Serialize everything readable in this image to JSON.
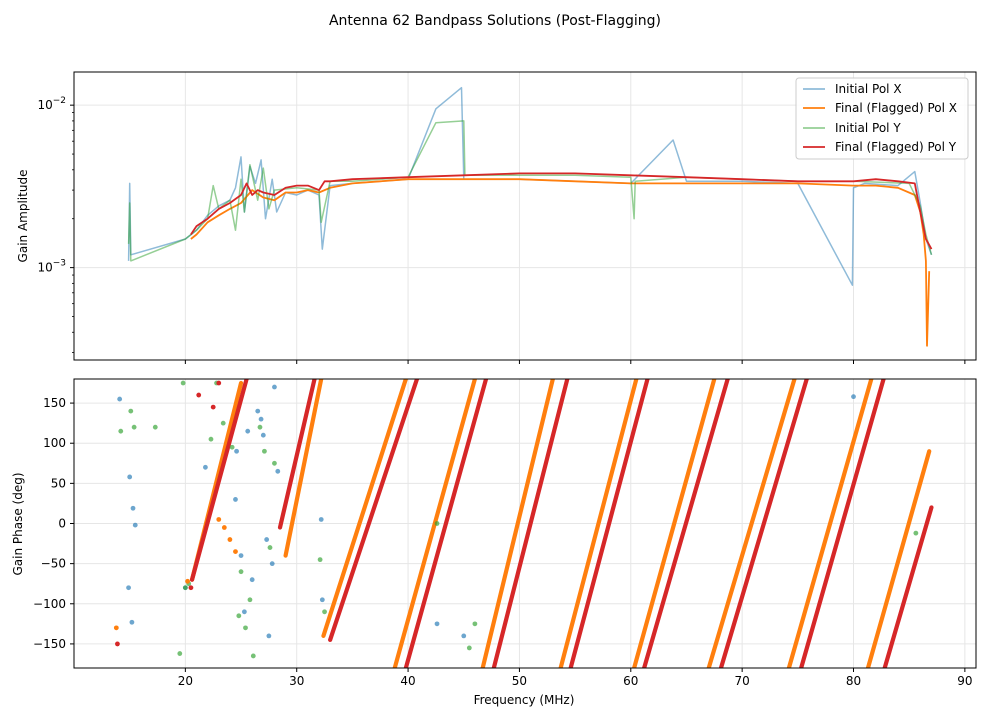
{
  "figure": {
    "title": "Antenna 62 Bandpass Solutions (Post-Flagging)"
  },
  "chart_data": [
    {
      "type": "line",
      "name": "amplitude",
      "yscale": "log",
      "xlim": [
        10,
        91
      ],
      "ylim": [
        0.00027,
        0.016
      ],
      "ylabel": "Gain Amplitude",
      "xlabel": "",
      "grid": true,
      "yticks": [
        {
          "value": 0.001,
          "label_base": "10",
          "label_exp": "−3"
        },
        {
          "value": 0.01,
          "label_base": "10",
          "label_exp": "−2"
        }
      ],
      "xticks": [
        20,
        30,
        40,
        50,
        60,
        70,
        80,
        90
      ],
      "legend": {
        "position": "top-right",
        "entries": [
          "Initial Pol X",
          "Final (Flagged) Pol X",
          "Initial Pol Y",
          "Final (Flagged) Pol Y"
        ]
      },
      "series": [
        {
          "name": "Initial Pol X",
          "color": "#1f77b4",
          "x": [
            14.9,
            15.0,
            15.1,
            20.0,
            21.0,
            22.0,
            23.0,
            24.0,
            24.5,
            25.0,
            25.3,
            25.8,
            26.3,
            26.8,
            27.2,
            27.8,
            28.2,
            29.0,
            30.0,
            31.0,
            32.0,
            32.3,
            33.0,
            35.0,
            40.0,
            42.5,
            44.8,
            45.0,
            50.0,
            55.0,
            60.0,
            63.8,
            65.0,
            70.0,
            75.0,
            79.9,
            80.0,
            81.0,
            84.0,
            85.5,
            86.0,
            86.5,
            87.0
          ],
          "y": [
            0.0011,
            0.0033,
            0.0012,
            0.0015,
            0.0017,
            0.0021,
            0.0024,
            0.0026,
            0.0031,
            0.0048,
            0.0022,
            0.0042,
            0.0033,
            0.0046,
            0.002,
            0.0035,
            0.0022,
            0.0029,
            0.0028,
            0.003,
            0.0028,
            0.0013,
            0.0032,
            0.0033,
            0.0035,
            0.0095,
            0.0128,
            0.0035,
            0.0035,
            0.0034,
            0.0033,
            0.0061,
            0.0034,
            0.0034,
            0.0033,
            0.00078,
            0.0031,
            0.0033,
            0.0032,
            0.0039,
            0.0025,
            0.0015,
            0.0012
          ]
        },
        {
          "name": "Final (Flagged) Pol X",
          "color": "#ff7f0e",
          "x": [
            20.5,
            21.0,
            22.0,
            23.0,
            24.0,
            25.0,
            26.0,
            27.0,
            28.0,
            29.0,
            30.0,
            31.0,
            32.0,
            33.0,
            35.0,
            40.0,
            45.0,
            50.0,
            55.0,
            60.0,
            65.0,
            70.0,
            75.0,
            80.0,
            82.0,
            84.0,
            85.5,
            86.0,
            86.3,
            86.5,
            86.6,
            86.8
          ],
          "y": [
            0.0015,
            0.0016,
            0.0019,
            0.0021,
            0.0023,
            0.0025,
            0.003,
            0.0027,
            0.0026,
            0.0029,
            0.0029,
            0.003,
            0.0029,
            0.0031,
            0.0033,
            0.0035,
            0.0035,
            0.0035,
            0.0034,
            0.0033,
            0.0033,
            0.0033,
            0.0033,
            0.0032,
            0.0032,
            0.0031,
            0.0028,
            0.0022,
            0.0016,
            0.0011,
            0.00033,
            0.00095
          ]
        },
        {
          "name": "Initial Pol Y",
          "color": "#2ca02c",
          "x": [
            14.9,
            15.0,
            15.1,
            20.0,
            21.0,
            22.0,
            22.5,
            23.0,
            24.0,
            24.5,
            25.0,
            25.3,
            25.8,
            26.5,
            27.0,
            27.5,
            28.0,
            30.0,
            32.0,
            32.2,
            33.0,
            35.0,
            40.0,
            42.5,
            45.0,
            45.1,
            50.0,
            55.0,
            60.0,
            60.3,
            60.4,
            65.0,
            70.0,
            75.0,
            80.0,
            85.0,
            86.0,
            86.5,
            87.0
          ],
          "y": [
            0.0014,
            0.0025,
            0.0011,
            0.0015,
            0.0017,
            0.002,
            0.0032,
            0.0023,
            0.0026,
            0.0017,
            0.0035,
            0.0022,
            0.0043,
            0.0026,
            0.0041,
            0.0023,
            0.003,
            0.0031,
            0.003,
            0.0019,
            0.0034,
            0.0034,
            0.0036,
            0.0078,
            0.008,
            0.0037,
            0.0037,
            0.0037,
            0.0036,
            0.002,
            0.0034,
            0.0036,
            0.0035,
            0.0034,
            0.0034,
            0.0033,
            0.0024,
            0.0016,
            0.0012
          ]
        },
        {
          "name": "Final (Flagged) Pol Y",
          "color": "#d62728",
          "x": [
            20.5,
            21.0,
            22.0,
            23.0,
            24.0,
            25.0,
            25.5,
            26.0,
            26.5,
            27.0,
            28.0,
            29.0,
            30.0,
            31.0,
            32.0,
            32.5,
            33.0,
            35.0,
            40.0,
            45.0,
            50.0,
            55.0,
            60.0,
            65.0,
            70.0,
            75.0,
            80.0,
            82.0,
            84.0,
            85.5,
            86.0,
            86.5,
            87.0
          ],
          "y": [
            0.0016,
            0.0018,
            0.002,
            0.0023,
            0.0025,
            0.0028,
            0.0033,
            0.0028,
            0.003,
            0.0029,
            0.0028,
            0.0031,
            0.0032,
            0.0032,
            0.003,
            0.0034,
            0.0034,
            0.0035,
            0.0036,
            0.0037,
            0.0038,
            0.0038,
            0.0037,
            0.0036,
            0.0035,
            0.0034,
            0.0034,
            0.0035,
            0.0034,
            0.0033,
            0.0022,
            0.0015,
            0.0013
          ]
        }
      ]
    },
    {
      "type": "scatter",
      "name": "phase",
      "xlim": [
        10,
        91
      ],
      "ylim": [
        -180,
        180
      ],
      "xlabel": "Frequency (MHz)",
      "ylabel": "Gain Phase (deg)",
      "grid": true,
      "xticks": [
        20,
        30,
        40,
        50,
        60,
        70,
        80,
        90
      ],
      "yticks": [
        -150,
        -100,
        -50,
        0,
        50,
        100,
        150
      ],
      "wrap_lines": [
        {
          "series": "Final (Flagged) Pol X",
          "color": "#ff7f0e",
          "segments": [
            [
              20.6,
              -70,
              25.0,
              175
            ],
            [
              29.0,
              -40,
              32.2,
              180
            ],
            [
              32.4,
              -140,
              39.8,
              180
            ],
            [
              38.8,
              -180,
              46.0,
              180
            ],
            [
              46.7,
              -180,
              53.0,
              180
            ],
            [
              53.7,
              -180,
              60.5,
              180
            ],
            [
              60.3,
              -180,
              67.5,
              180
            ],
            [
              67.0,
              -180,
              74.7,
              180
            ],
            [
              74.2,
              -180,
              81.6,
              180
            ],
            [
              81.3,
              -180,
              86.8,
              90
            ]
          ]
        },
        {
          "series": "Final (Flagged) Pol Y",
          "color": "#d62728",
          "segments": [
            [
              20.6,
              -70,
              25.5,
              180
            ],
            [
              28.5,
              -5,
              31.6,
              180
            ],
            [
              33.0,
              -145,
              40.8,
              180
            ],
            [
              39.8,
              -180,
              47.0,
              180
            ],
            [
              47.7,
              -180,
              54.3,
              180
            ],
            [
              54.6,
              -180,
              61.5,
              180
            ],
            [
              61.2,
              -180,
              68.7,
              180
            ],
            [
              68.1,
              -180,
              75.8,
              180
            ],
            [
              75.3,
              -180,
              82.7,
              180
            ],
            [
              82.8,
              -180,
              87.0,
              20
            ]
          ]
        }
      ],
      "scatter_points": [
        {
          "series": "Initial Pol X",
          "color": "#1f77b4",
          "x": [
            14.1,
            15.0,
            15.3,
            15.5,
            14.9,
            15.2,
            20.0,
            21.8,
            24.5,
            24.6,
            25.0,
            25.3,
            26.5,
            26.8,
            27.0,
            27.5,
            27.8,
            28.0,
            28.3,
            32.2,
            32.3,
            42.6,
            45.0,
            80.0,
            25.6,
            26.0,
            27.3
          ],
          "y": [
            155,
            58,
            19,
            -2,
            -80,
            -123,
            -80,
            70,
            30,
            90,
            -40,
            -110,
            140,
            130,
            110,
            -140,
            -50,
            170,
            65,
            5,
            -95,
            -125,
            -140,
            158,
            115,
            -70,
            -20
          ]
        },
        {
          "series": "Initial Pol Y",
          "color": "#2ca02c",
          "x": [
            14.2,
            15.1,
            15.4,
            17.3,
            19.8,
            20.0,
            20.3,
            22.3,
            22.8,
            23.4,
            24.2,
            24.8,
            25.0,
            25.4,
            25.8,
            26.1,
            26.7,
            27.1,
            27.6,
            28.0,
            32.1,
            32.5,
            42.6,
            46.0,
            45.5,
            85.6,
            19.5
          ],
          "y": [
            115,
            140,
            120,
            120,
            175,
            -80,
            -75,
            105,
            175,
            125,
            95,
            -115,
            -60,
            -130,
            -95,
            -165,
            120,
            90,
            -30,
            75,
            -45,
            -110,
            0,
            -125,
            -155,
            -12,
            -162
          ]
        },
        {
          "series": "Final (Flagged) Pol X",
          "color": "#ff7f0e",
          "x": [
            13.8,
            20.2,
            23.0,
            23.5,
            24.0,
            24.5
          ],
          "y": [
            -130,
            -72,
            5,
            -5,
            -20,
            -35
          ]
        },
        {
          "series": "Final (Flagged) Pol Y",
          "color": "#d62728",
          "x": [
            13.9,
            20.5,
            21.2,
            22.5,
            23.0
          ],
          "y": [
            -150,
            -80,
            160,
            145,
            175
          ]
        }
      ]
    }
  ]
}
